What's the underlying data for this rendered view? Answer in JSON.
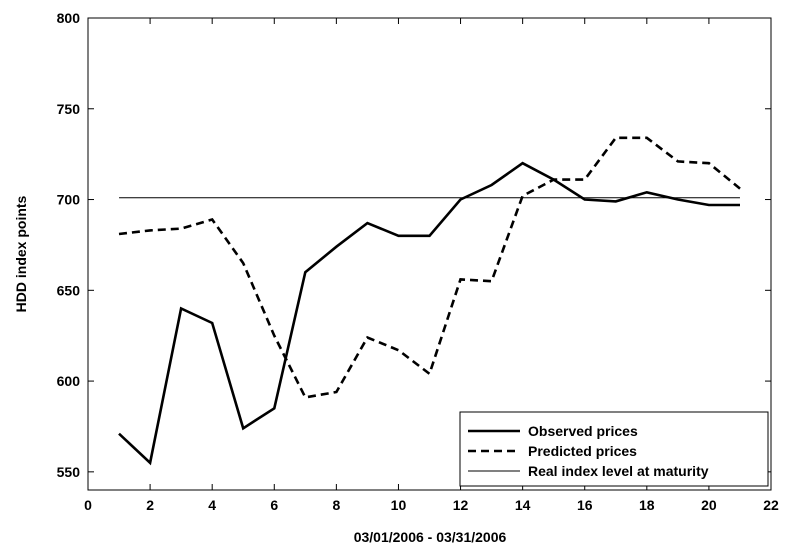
{
  "chart_data": {
    "type": "line",
    "title": "",
    "xlabel": "03/01/2006 - 03/31/2006",
    "ylabel": "HDD index points",
    "xlim": [
      0,
      22
    ],
    "ylim": [
      540,
      800
    ],
    "x_ticks": [
      0,
      2,
      4,
      6,
      8,
      10,
      12,
      14,
      16,
      18,
      20,
      22
    ],
    "y_ticks": [
      550,
      600,
      650,
      700,
      750,
      800
    ],
    "grid": false,
    "legend_position": "bottom-right",
    "x": [
      1,
      2,
      3,
      4,
      5,
      6,
      7,
      8,
      9,
      10,
      11,
      12,
      13,
      14,
      15,
      16,
      17,
      18,
      19,
      20,
      21
    ],
    "series": [
      {
        "name": "Observed prices",
        "style": "solid-thick",
        "values": [
          571,
          555,
          640,
          632,
          574,
          585,
          660,
          674,
          687,
          680,
          680,
          700,
          708,
          720,
          711,
          700,
          699,
          704,
          700,
          697,
          697
        ]
      },
      {
        "name": "Predicted prices",
        "style": "dashed",
        "values": [
          681,
          683,
          684,
          689,
          665,
          625,
          591,
          594,
          624,
          617,
          604,
          656,
          655,
          702,
          711,
          711,
          734,
          734,
          721,
          720,
          706
        ]
      },
      {
        "name": "Real index level at maturity",
        "style": "thin",
        "x_range": [
          1,
          21
        ],
        "constant": 701
      }
    ]
  }
}
